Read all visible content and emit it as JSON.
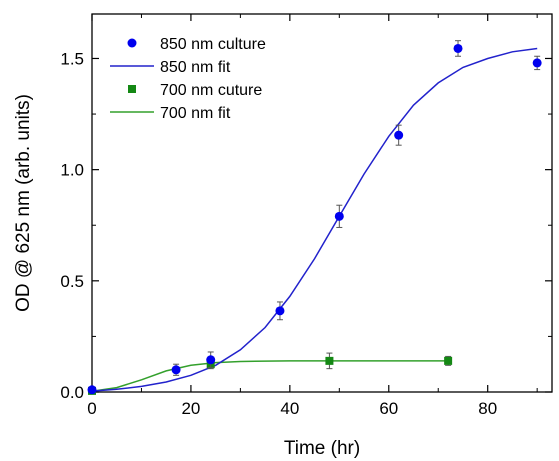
{
  "chart_data": {
    "type": "scatter",
    "xlabel": "Time (hr)",
    "ylabel": "OD @ 625 nm (arb. units)",
    "xlim": [
      0,
      93
    ],
    "ylim": [
      0,
      1.7
    ],
    "x_ticks": [
      0,
      20,
      40,
      60,
      80
    ],
    "y_ticks": [
      0.0,
      0.5,
      1.0,
      1.5
    ],
    "x_tick_labels": [
      "0",
      "20",
      "40",
      "60",
      "80"
    ],
    "y_tick_labels": [
      "0.0",
      "0.5",
      "1.0",
      "1.5"
    ],
    "grid": false,
    "legend_position": "top-left",
    "series": [
      {
        "name": "850 nm culture",
        "kind": "points",
        "marker": "circle",
        "color": "#0000ee",
        "points": [
          {
            "x": 0,
            "y": 0.01,
            "err": 0.01
          },
          {
            "x": 17,
            "y": 0.1,
            "err": 0.025
          },
          {
            "x": 24,
            "y": 0.145,
            "err": 0.035
          },
          {
            "x": 38,
            "y": 0.365,
            "err": 0.04
          },
          {
            "x": 50,
            "y": 0.79,
            "err": 0.05
          },
          {
            "x": 62,
            "y": 1.155,
            "err": 0.045
          },
          {
            "x": 74,
            "y": 1.545,
            "err": 0.035
          },
          {
            "x": 90,
            "y": 1.48,
            "err": 0.03
          }
        ]
      },
      {
        "name": "850 nm fit",
        "kind": "line",
        "color": "#2222cc",
        "points": [
          {
            "x": 0,
            "y": 0.004
          },
          {
            "x": 5,
            "y": 0.012
          },
          {
            "x": 10,
            "y": 0.025
          },
          {
            "x": 15,
            "y": 0.045
          },
          {
            "x": 20,
            "y": 0.075
          },
          {
            "x": 25,
            "y": 0.12
          },
          {
            "x": 30,
            "y": 0.19
          },
          {
            "x": 35,
            "y": 0.29
          },
          {
            "x": 40,
            "y": 0.43
          },
          {
            "x": 45,
            "y": 0.6
          },
          {
            "x": 50,
            "y": 0.79
          },
          {
            "x": 55,
            "y": 0.98
          },
          {
            "x": 60,
            "y": 1.15
          },
          {
            "x": 65,
            "y": 1.29
          },
          {
            "x": 70,
            "y": 1.39
          },
          {
            "x": 75,
            "y": 1.46
          },
          {
            "x": 80,
            "y": 1.5
          },
          {
            "x": 85,
            "y": 1.53
          },
          {
            "x": 90,
            "y": 1.545
          }
        ]
      },
      {
        "name": "700 nm cuture",
        "kind": "points",
        "marker": "square",
        "color": "#148814",
        "points": [
          {
            "x": 0,
            "y": 0.005,
            "err": 0.01
          },
          {
            "x": 24,
            "y": 0.125,
            "err": 0.02
          },
          {
            "x": 48,
            "y": 0.14,
            "err": 0.035
          },
          {
            "x": 72,
            "y": 0.14,
            "err": 0.02
          }
        ]
      },
      {
        "name": "700 nm fit",
        "kind": "line",
        "color": "#33a02c",
        "points": [
          {
            "x": 0,
            "y": 0.003
          },
          {
            "x": 5,
            "y": 0.02
          },
          {
            "x": 10,
            "y": 0.055
          },
          {
            "x": 15,
            "y": 0.095
          },
          {
            "x": 20,
            "y": 0.12
          },
          {
            "x": 25,
            "y": 0.132
          },
          {
            "x": 30,
            "y": 0.137
          },
          {
            "x": 35,
            "y": 0.139
          },
          {
            "x": 40,
            "y": 0.14
          },
          {
            "x": 50,
            "y": 0.14
          },
          {
            "x": 60,
            "y": 0.14
          },
          {
            "x": 72,
            "y": 0.14
          }
        ]
      }
    ]
  }
}
